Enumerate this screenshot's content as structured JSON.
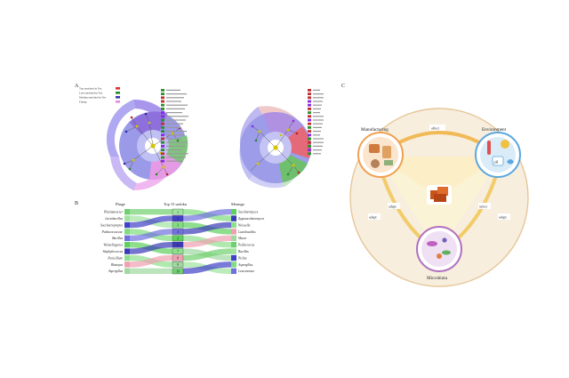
{
  "panels": {
    "a_label": "A",
    "b_label": "B",
    "c_label": "C"
  },
  "panel_a": {
    "legend_left": [
      {
        "label": "Top enriched in Tea",
        "color": "#e03030"
      },
      {
        "label": "Less enriched in Tea",
        "color": "#2a8a2a"
      },
      {
        "label": "Median enriched in Tea",
        "color": "#3a3ab0"
      },
      {
        "label": "Fixing",
        "color": "#e58ae0"
      }
    ],
    "legend_mid_colors": [
      "#2f8f2f",
      "#2f8f2f",
      "#c03030",
      "#c03030",
      "#2f8f2f",
      "#2f8f2f",
      "#8a2be2",
      "#8a2be2",
      "#2f8f2f",
      "#c03030",
      "#2f8f2f",
      "#2f8f2f",
      "#8a2be2",
      "#c03030",
      "#2f8f2f",
      "#8a2be2",
      "#2f8f2f",
      "#c03030",
      "#2f8f2f",
      "#8a2be2"
    ],
    "legend_right_colors": [
      "#c03030",
      "#c03030",
      "#c03030",
      "#8a2be2",
      "#8a2be2",
      "#c03030",
      "#2f8f2f",
      "#c03030",
      "#8a2be2",
      "#c03030",
      "#2f8f2f",
      "#c03030",
      "#8a2be2",
      "#2f8f2f",
      "#c03030",
      "#2f8f2f",
      "#8a2be2",
      "#2f8f2f"
    ]
  },
  "panel_b": {
    "col_left": "Phage",
    "col_mid": "Top 15 sudoku",
    "col_right": "Mounga",
    "left_items": [
      "Planimaracter",
      "Lactobacillus",
      "Saccharosymptex",
      "Pediacoccaceae",
      "Bacillus",
      "Weissellagenes",
      "Staphylococcus",
      "Penicillium",
      "Rhizopus",
      "Aspergillus"
    ],
    "mid_items": [
      "1",
      "2",
      "3",
      "4",
      "5",
      "6",
      "7",
      "8",
      "9",
      "10"
    ],
    "right_items": [
      "Saccharomyces",
      "Zygosaccharomyces",
      "Weissella",
      "Lactobacillus",
      "Mucor",
      "Pediococcus",
      "Bacillus",
      "Pichia",
      "Aspergillus",
      "Leuconostoc"
    ]
  },
  "panel_c": {
    "manufacturing": "Manufacturing",
    "environment": "Environment",
    "microbiota": "Microbiota",
    "affect": "affect",
    "adapt_left1": "adapt",
    "adapt_left2": "adapt",
    "adapt_right1": "select",
    "adapt_right2": "adapt",
    "ph": "pH"
  }
}
